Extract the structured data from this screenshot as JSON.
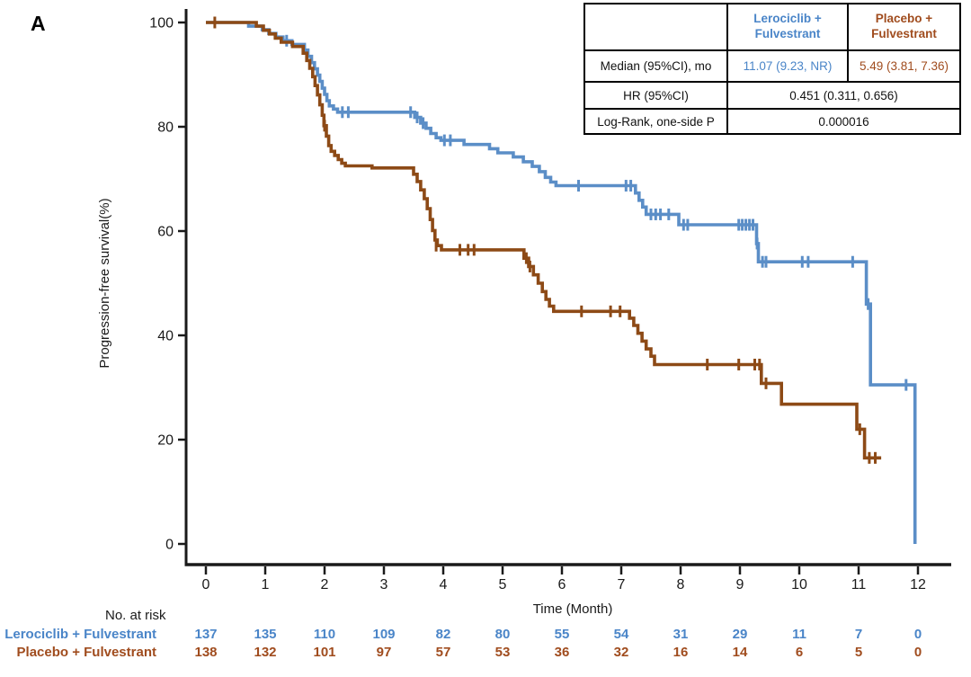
{
  "panel_label": "A",
  "colors": {
    "lerociclib_curve": "#5b8ec7",
    "lerociclib_text": "#4a85c8",
    "placebo_curve": "#8d4a16",
    "placebo_text": "#a04c1e",
    "axis": "#1a1a1a"
  },
  "stats_table": {
    "columns": [
      "Lerociclib +\nFulvestrant",
      "Placebo +\nFulvestrant"
    ],
    "rows": [
      {
        "label": "Median (95%CI), mo",
        "values": [
          "11.07 (9.23, NR)",
          "5.49 (3.81, 7.36)"
        ]
      },
      {
        "label": "HR (95%CI)",
        "value": "0.451 (0.311, 0.656)"
      },
      {
        "label": "Log-Rank, one-side P",
        "value": "0.000016"
      }
    ]
  },
  "chart_data": {
    "type": "line",
    "subtype": "kaplan-meier-step",
    "title": "",
    "xlabel": "Time (Month)",
    "ylabel": "Progression-free survival(%)",
    "xlim": [
      0,
      12.6
    ],
    "ylim": [
      0,
      100
    ],
    "x_ticks": [
      0,
      1,
      2,
      3,
      4,
      5,
      6,
      7,
      8,
      9,
      10,
      11,
      12
    ],
    "y_ticks": [
      0,
      20,
      40,
      60,
      80,
      100
    ],
    "grid": false,
    "legend_position": "none",
    "series": [
      {
        "name": "Lerociclib + Fulvestrant",
        "median_95ci_mo": "11.07 (9.23, NR)",
        "steps": [
          [
            0,
            100
          ],
          [
            0.72,
            99.3
          ],
          [
            0.95,
            98.6
          ],
          [
            1.06,
            97.9
          ],
          [
            1.18,
            97.2
          ],
          [
            1.3,
            96.5
          ],
          [
            1.45,
            95.8
          ],
          [
            1.66,
            94.7
          ],
          [
            1.72,
            93.5
          ],
          [
            1.78,
            92.3
          ],
          [
            1.83,
            91.1
          ],
          [
            1.88,
            89.9
          ],
          [
            1.92,
            88.7
          ],
          [
            1.96,
            87.4
          ],
          [
            2.0,
            86.2
          ],
          [
            2.04,
            85.0
          ],
          [
            2.08,
            84.0
          ],
          [
            2.15,
            83.4
          ],
          [
            2.22,
            82.8
          ],
          [
            3.52,
            81.8
          ],
          [
            3.62,
            80.7
          ],
          [
            3.71,
            79.7
          ],
          [
            3.79,
            78.7
          ],
          [
            3.88,
            77.9
          ],
          [
            3.96,
            77.4
          ],
          [
            4.35,
            76.6
          ],
          [
            4.78,
            75.8
          ],
          [
            4.92,
            75.0
          ],
          [
            5.18,
            74.2
          ],
          [
            5.35,
            73.3
          ],
          [
            5.5,
            72.4
          ],
          [
            5.62,
            71.4
          ],
          [
            5.72,
            70.3
          ],
          [
            5.81,
            69.4
          ],
          [
            5.9,
            68.7
          ],
          [
            7.24,
            67.3
          ],
          [
            7.3,
            65.9
          ],
          [
            7.36,
            64.6
          ],
          [
            7.42,
            63.2
          ],
          [
            7.97,
            61.2
          ],
          [
            9.28,
            57.6
          ],
          [
            9.31,
            54.1
          ],
          [
            11.13,
            46.0
          ],
          [
            11.2,
            30.5
          ],
          [
            11.95,
            0
          ]
        ],
        "censors": [
          [
            1.36,
            96.5
          ],
          [
            2.3,
            82.8
          ],
          [
            2.4,
            82.8
          ],
          [
            3.45,
            82.8
          ],
          [
            3.56,
            81.8
          ],
          [
            3.66,
            80.7
          ],
          [
            4.02,
            77.4
          ],
          [
            4.12,
            77.4
          ],
          [
            6.28,
            68.7
          ],
          [
            7.08,
            68.7
          ],
          [
            7.16,
            68.7
          ],
          [
            7.5,
            63.2
          ],
          [
            7.58,
            63.2
          ],
          [
            7.66,
            63.2
          ],
          [
            7.8,
            63.2
          ],
          [
            8.05,
            61.2
          ],
          [
            8.12,
            61.2
          ],
          [
            8.98,
            61.2
          ],
          [
            9.04,
            61.2
          ],
          [
            9.1,
            61.2
          ],
          [
            9.16,
            61.2
          ],
          [
            9.22,
            61.2
          ],
          [
            9.29,
            57.6
          ],
          [
            9.38,
            54.1
          ],
          [
            9.44,
            54.1
          ],
          [
            10.05,
            54.1
          ],
          [
            10.15,
            54.1
          ],
          [
            10.9,
            54.1
          ],
          [
            11.16,
            46.0
          ],
          [
            11.8,
            30.5
          ]
        ]
      },
      {
        "name": "Placebo + Fulvestrant",
        "median_95ci_mo": "5.49 (3.81, 7.36)",
        "steps": [
          [
            0,
            100
          ],
          [
            0.85,
            99.3
          ],
          [
            0.97,
            98.5
          ],
          [
            1.07,
            97.8
          ],
          [
            1.17,
            97.0
          ],
          [
            1.27,
            96.2
          ],
          [
            1.46,
            95.4
          ],
          [
            1.64,
            94.1
          ],
          [
            1.7,
            92.7
          ],
          [
            1.75,
            91.2
          ],
          [
            1.8,
            89.6
          ],
          [
            1.84,
            87.9
          ],
          [
            1.88,
            86.1
          ],
          [
            1.92,
            84.2
          ],
          [
            1.96,
            82.2
          ],
          [
            1.99,
            80.2
          ],
          [
            2.03,
            78.2
          ],
          [
            2.07,
            76.4
          ],
          [
            2.11,
            75.3
          ],
          [
            2.17,
            74.5
          ],
          [
            2.23,
            73.7
          ],
          [
            2.29,
            73.0
          ],
          [
            2.35,
            72.5
          ],
          [
            2.8,
            72.1
          ],
          [
            3.5,
            70.9
          ],
          [
            3.56,
            69.5
          ],
          [
            3.62,
            67.9
          ],
          [
            3.68,
            66.2
          ],
          [
            3.73,
            64.3
          ],
          [
            3.78,
            62.2
          ],
          [
            3.82,
            60.1
          ],
          [
            3.86,
            58.3
          ],
          [
            3.9,
            57.2
          ],
          [
            3.97,
            56.4
          ],
          [
            5.36,
            54.8
          ],
          [
            5.44,
            53.2
          ],
          [
            5.52,
            51.6
          ],
          [
            5.6,
            50.0
          ],
          [
            5.67,
            48.4
          ],
          [
            5.73,
            46.9
          ],
          [
            5.79,
            45.6
          ],
          [
            5.86,
            44.6
          ],
          [
            7.14,
            43.3
          ],
          [
            7.21,
            41.9
          ],
          [
            7.28,
            40.4
          ],
          [
            7.35,
            38.9
          ],
          [
            7.42,
            37.4
          ],
          [
            7.5,
            36.0
          ],
          [
            7.56,
            34.4
          ],
          [
            9.36,
            30.8
          ],
          [
            9.7,
            26.8
          ],
          [
            10.97,
            22.0
          ],
          [
            11.1,
            16.5
          ],
          [
            11.38,
            16.5
          ]
        ],
        "censors": [
          [
            0.15,
            100
          ],
          [
            2.0,
            80.2
          ],
          [
            3.88,
            57.2
          ],
          [
            4.28,
            56.4
          ],
          [
            4.42,
            56.4
          ],
          [
            4.52,
            56.4
          ],
          [
            5.4,
            54.8
          ],
          [
            5.46,
            53.2
          ],
          [
            6.33,
            44.6
          ],
          [
            6.82,
            44.6
          ],
          [
            6.98,
            44.6
          ],
          [
            8.45,
            34.4
          ],
          [
            8.98,
            34.4
          ],
          [
            9.25,
            34.4
          ],
          [
            9.33,
            34.4
          ],
          [
            9.44,
            30.8
          ],
          [
            11.02,
            22.0
          ],
          [
            11.18,
            16.5
          ],
          [
            11.28,
            16.5
          ]
        ]
      }
    ]
  },
  "risk_table": {
    "title": "No. at risk",
    "months": [
      0,
      1,
      2,
      3,
      4,
      5,
      6,
      7,
      8,
      9,
      10,
      11,
      12
    ],
    "rows": [
      {
        "label": "Lerociclib + Fulvestrant",
        "values": [
          "137",
          "135",
          "110",
          "109",
          "82",
          "80",
          "55",
          "54",
          "31",
          "29",
          "11",
          "7",
          "0"
        ]
      },
      {
        "label": "Placebo + Fulvestrant",
        "values": [
          "138",
          "132",
          "101",
          "97",
          "57",
          "53",
          "36",
          "32",
          "16",
          "14",
          "6",
          "5",
          "0"
        ]
      }
    ]
  }
}
